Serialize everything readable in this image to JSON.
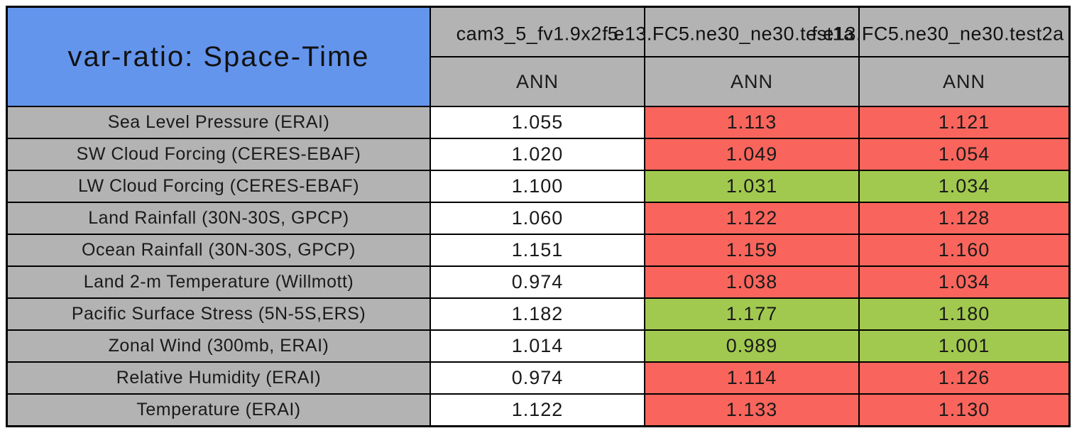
{
  "title": "var-ratio: Space-Time",
  "header": {
    "run_names": [
      "cam3_5_fv1.9x2.5",
      "f.e13.FC5.ne30_ne30.test1a",
      "f.e13.FC5.ne30_ne30.test2a"
    ],
    "season_labels": [
      "ANN",
      "ANN",
      "ANN"
    ]
  },
  "colors": {
    "title_bg_blue": "#6495ED",
    "header_gray": "#b3b3b3",
    "worse_red": "#f9655c",
    "better_green": "#a2c94f",
    "neutral_white": "#ffffff",
    "border_black": "#000000"
  },
  "chart_data": {
    "type": "table",
    "title": "var-ratio: Space-Time",
    "columns": [
      "cam3_5_fv1.9x2.5",
      "f.e13.FC5.ne30_ne30.test1a",
      "f.e13.FC5.ne30_ne30.test2a"
    ],
    "season_row": [
      "ANN",
      "ANN",
      "ANN"
    ],
    "cell_color_legend": {
      "white": "reference value",
      "red": "worse than reference",
      "green": "better than reference"
    },
    "rows": [
      {
        "label": "Sea Level Pressure (ERAI)",
        "values": [
          "1.055",
          "1.113",
          "1.121"
        ],
        "cell_colors": [
          "white",
          "red",
          "red"
        ]
      },
      {
        "label": "SW Cloud Forcing (CERES-EBAF)",
        "values": [
          "1.020",
          "1.049",
          "1.054"
        ],
        "cell_colors": [
          "white",
          "red",
          "red"
        ]
      },
      {
        "label": "LW Cloud Forcing (CERES-EBAF)",
        "values": [
          "1.100",
          "1.031",
          "1.034"
        ],
        "cell_colors": [
          "white",
          "green",
          "green"
        ]
      },
      {
        "label": "Land Rainfall (30N-30S, GPCP)",
        "values": [
          "1.060",
          "1.122",
          "1.128"
        ],
        "cell_colors": [
          "white",
          "red",
          "red"
        ]
      },
      {
        "label": "Ocean Rainfall (30N-30S, GPCP)",
        "values": [
          "1.151",
          "1.159",
          "1.160"
        ],
        "cell_colors": [
          "white",
          "red",
          "red"
        ]
      },
      {
        "label": "Land 2-m Temperature (Willmott)",
        "values": [
          "0.974",
          "1.038",
          "1.034"
        ],
        "cell_colors": [
          "white",
          "red",
          "red"
        ]
      },
      {
        "label": "Pacific Surface Stress (5N-5S,ERS)",
        "values": [
          "1.182",
          "1.177",
          "1.180"
        ],
        "cell_colors": [
          "white",
          "green",
          "green"
        ]
      },
      {
        "label": "Zonal Wind (300mb, ERAI)",
        "values": [
          "1.014",
          "0.989",
          "1.001"
        ],
        "cell_colors": [
          "white",
          "green",
          "green"
        ]
      },
      {
        "label": "Relative Humidity (ERAI)",
        "values": [
          "0.974",
          "1.114",
          "1.126"
        ],
        "cell_colors": [
          "white",
          "red",
          "red"
        ]
      },
      {
        "label": "Temperature (ERAI)",
        "values": [
          "1.122",
          "1.133",
          "1.130"
        ],
        "cell_colors": [
          "white",
          "red",
          "red"
        ]
      }
    ]
  }
}
